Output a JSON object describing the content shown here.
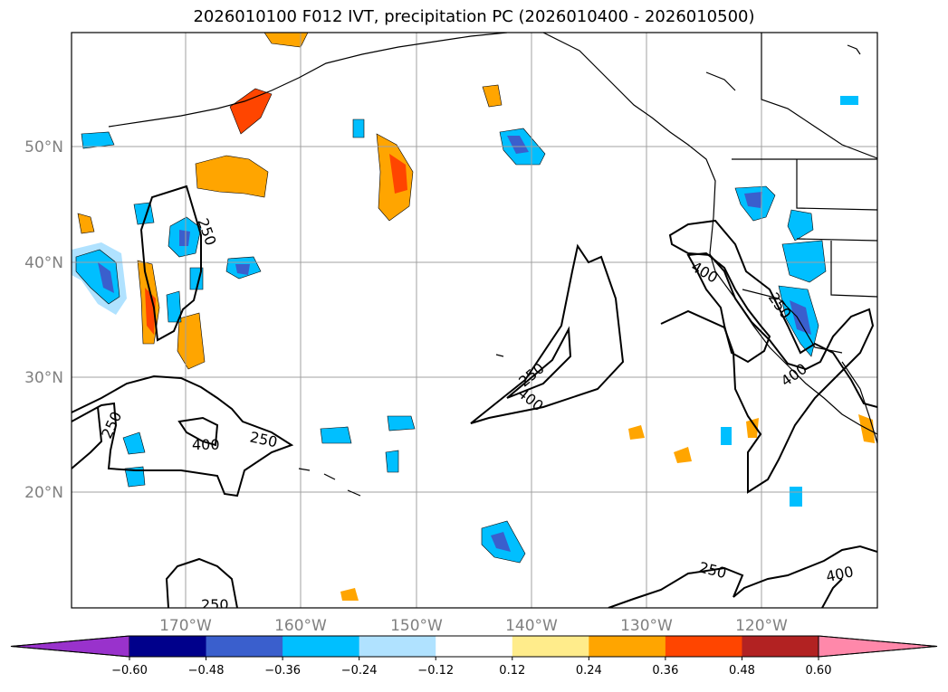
{
  "title": "2026010100 F012 IVT, precipitation PC (2026010400 - 2026010500)",
  "map": {
    "lat_labels": [
      "50°N",
      "40°N",
      "30°N",
      "20°N"
    ],
    "lon_labels": [
      "170°W",
      "160°W",
      "150°W",
      "140°W",
      "130°W",
      "120°W"
    ],
    "ivt_contour_labels": [
      {
        "id": "c250-a",
        "text": "250"
      },
      {
        "id": "c250-b",
        "text": "250"
      },
      {
        "id": "c250-c",
        "text": "250"
      },
      {
        "id": "c250-d",
        "text": "250"
      },
      {
        "id": "c250-e",
        "text": "250"
      },
      {
        "id": "c250-f",
        "text": "250"
      },
      {
        "id": "c250-g",
        "text": "250"
      },
      {
        "id": "c400-a",
        "text": "400"
      },
      {
        "id": "c400-b",
        "text": "400"
      },
      {
        "id": "c400-c",
        "text": "400"
      },
      {
        "id": "c400-d",
        "text": "400"
      },
      {
        "id": "c400-e",
        "text": "400"
      }
    ]
  },
  "colorbar": {
    "ticks": [
      "−0.60",
      "−0.48",
      "−0.36",
      "−0.24",
      "−0.12",
      "0.12",
      "0.24",
      "0.36",
      "0.48",
      "0.60"
    ],
    "colors": {
      "under": "#9932cc",
      "bins": [
        "#00008b",
        "#3a5fcd",
        "#00bfff",
        "#b0e2ff",
        "#ffffff",
        "#ffec8b",
        "#ffa500",
        "#ff4500",
        "#b22222"
      ],
      "over": "#ff88aa"
    }
  }
}
